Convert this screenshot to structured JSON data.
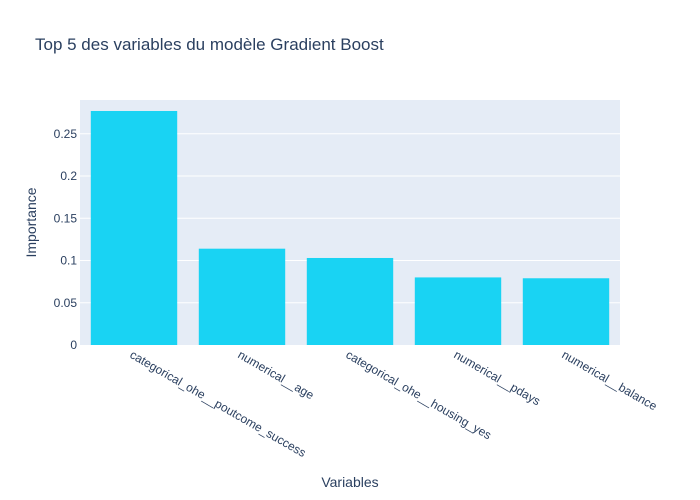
{
  "chart_data": {
    "type": "bar",
    "title": "Top 5 des variables du modèle Gradient Boost",
    "xlabel": "Variables",
    "ylabel": "Importance",
    "categories": [
      "categorical_ohe__poutcome_success",
      "numerical__age",
      "categorical_ohe__housing_yes",
      "numerical__pdays",
      "numerical__balance"
    ],
    "values": [
      0.277,
      0.114,
      0.103,
      0.08,
      0.079
    ],
    "ylim": [
      0,
      0.29
    ],
    "yticks": [
      0,
      0.05,
      0.1,
      0.15,
      0.2,
      0.25
    ],
    "ytick_labels": [
      "0",
      "0.05",
      "0.1",
      "0.15",
      "0.2",
      "0.25"
    ],
    "grid": true,
    "legend": "none",
    "colors": {
      "bar": "#19d3f3",
      "plot_bg": "#e5ecf6",
      "grid": "#ffffff",
      "text": "#2a3f5f"
    }
  }
}
